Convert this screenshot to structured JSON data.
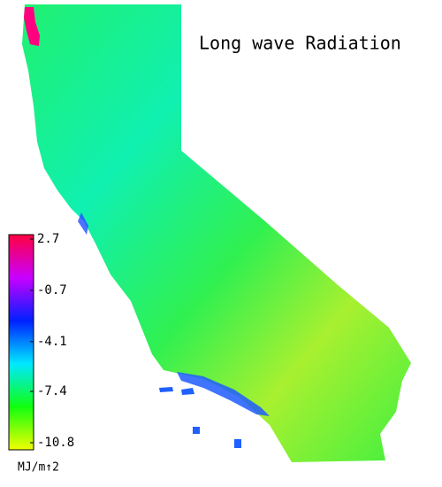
{
  "title": "Long wave Radiation",
  "colorbar": {
    "ticks": [
      2.7,
      -0.7,
      -4.1,
      -7.4,
      -10.8
    ],
    "colors": [
      "#ff0040",
      "#c800ff",
      "#0020ff",
      "#00e8ff",
      "#10ff10",
      "#f0ff00"
    ],
    "unit": "MJ/m↑2"
  }
}
